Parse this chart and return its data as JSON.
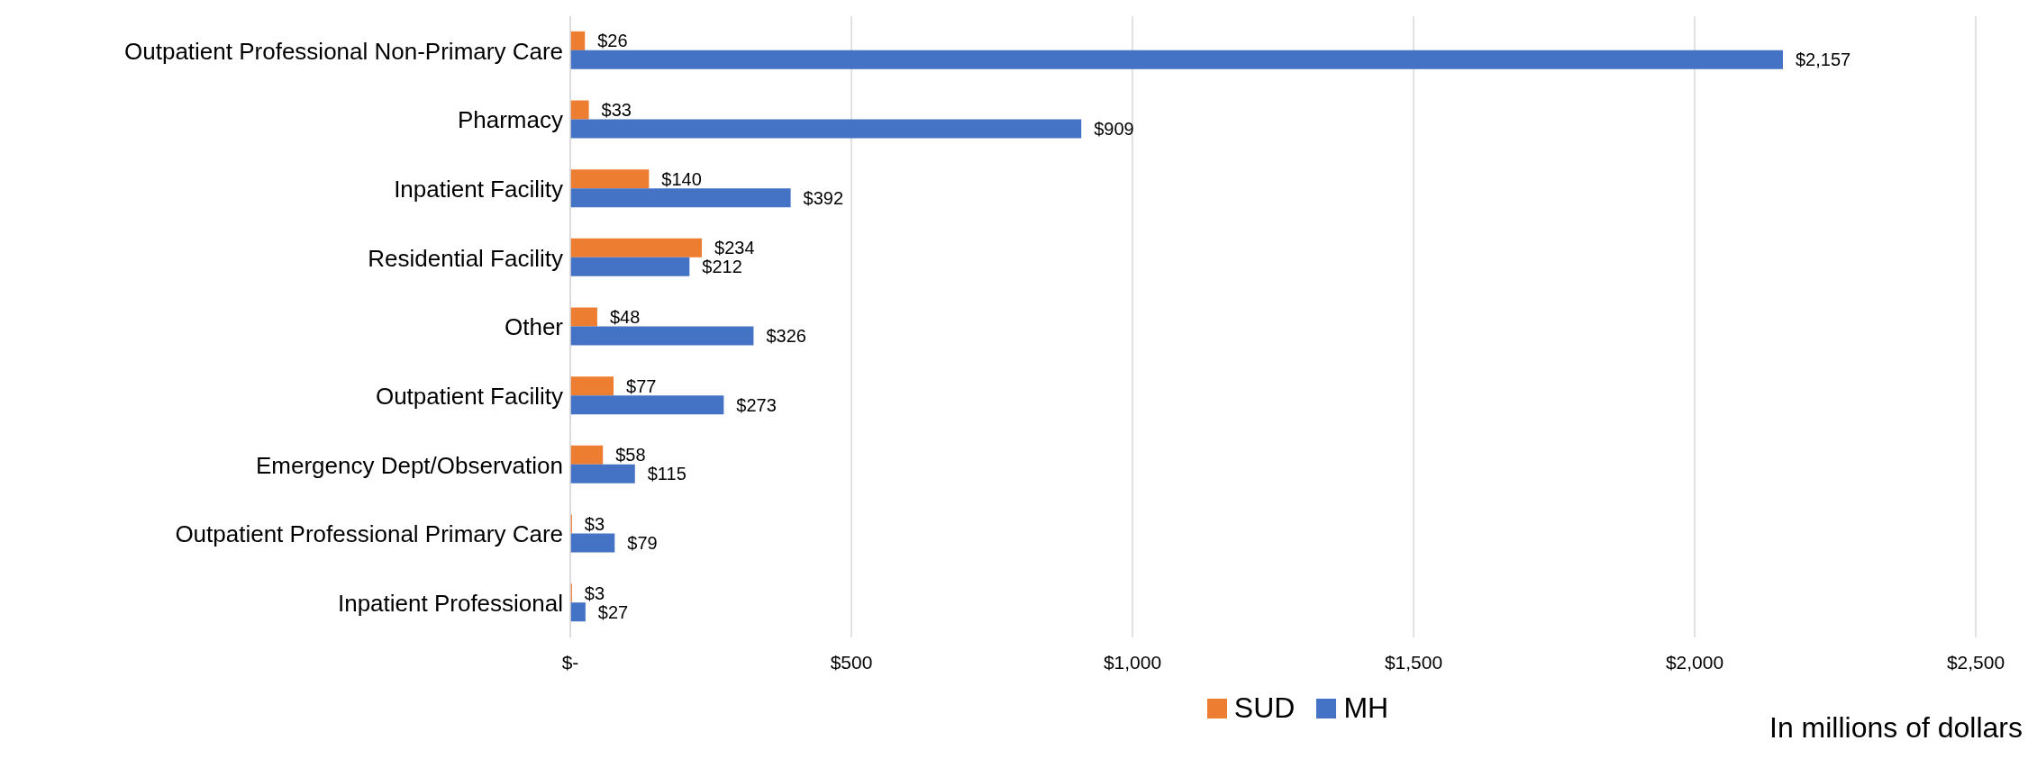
{
  "chart_data": {
    "type": "bar",
    "orientation": "horizontal",
    "categories": [
      "Outpatient Professional Non-Primary Care",
      "Pharmacy",
      "Inpatient Facility",
      "Residential Facility",
      "Other",
      "Outpatient Facility",
      "Emergency Dept/Observation",
      "Outpatient Professional Primary Care",
      "Inpatient Professional"
    ],
    "series": [
      {
        "name": "SUD",
        "color": "#ed7d31",
        "values": [
          26,
          33,
          140,
          234,
          48,
          77,
          58,
          3,
          3
        ],
        "value_labels": [
          "$26",
          "$33",
          "$140",
          "$234",
          "$48",
          "$77",
          "$58",
          "$3",
          "$3"
        ]
      },
      {
        "name": "MH",
        "color": "#4472c4",
        "values": [
          2157,
          909,
          392,
          212,
          326,
          273,
          115,
          79,
          27
        ],
        "value_labels": [
          "$2,157",
          "$909",
          "$392",
          "$212",
          "$326",
          "$273",
          "$115",
          "$79",
          "$27"
        ]
      }
    ],
    "xlim": [
      0,
      2500
    ],
    "xticks": [
      {
        "value": 0,
        "label": "$-"
      },
      {
        "value": 500,
        "label": "$500"
      },
      {
        "value": 1000,
        "label": "$1,000"
      },
      {
        "value": 1500,
        "label": "$1,500"
      },
      {
        "value": 2000,
        "label": "$2,000"
      },
      {
        "value": 2500,
        "label": "$2,500"
      }
    ],
    "grid": "x",
    "legend": "bottom",
    "annotations": [
      "In millions of dollars"
    ]
  }
}
